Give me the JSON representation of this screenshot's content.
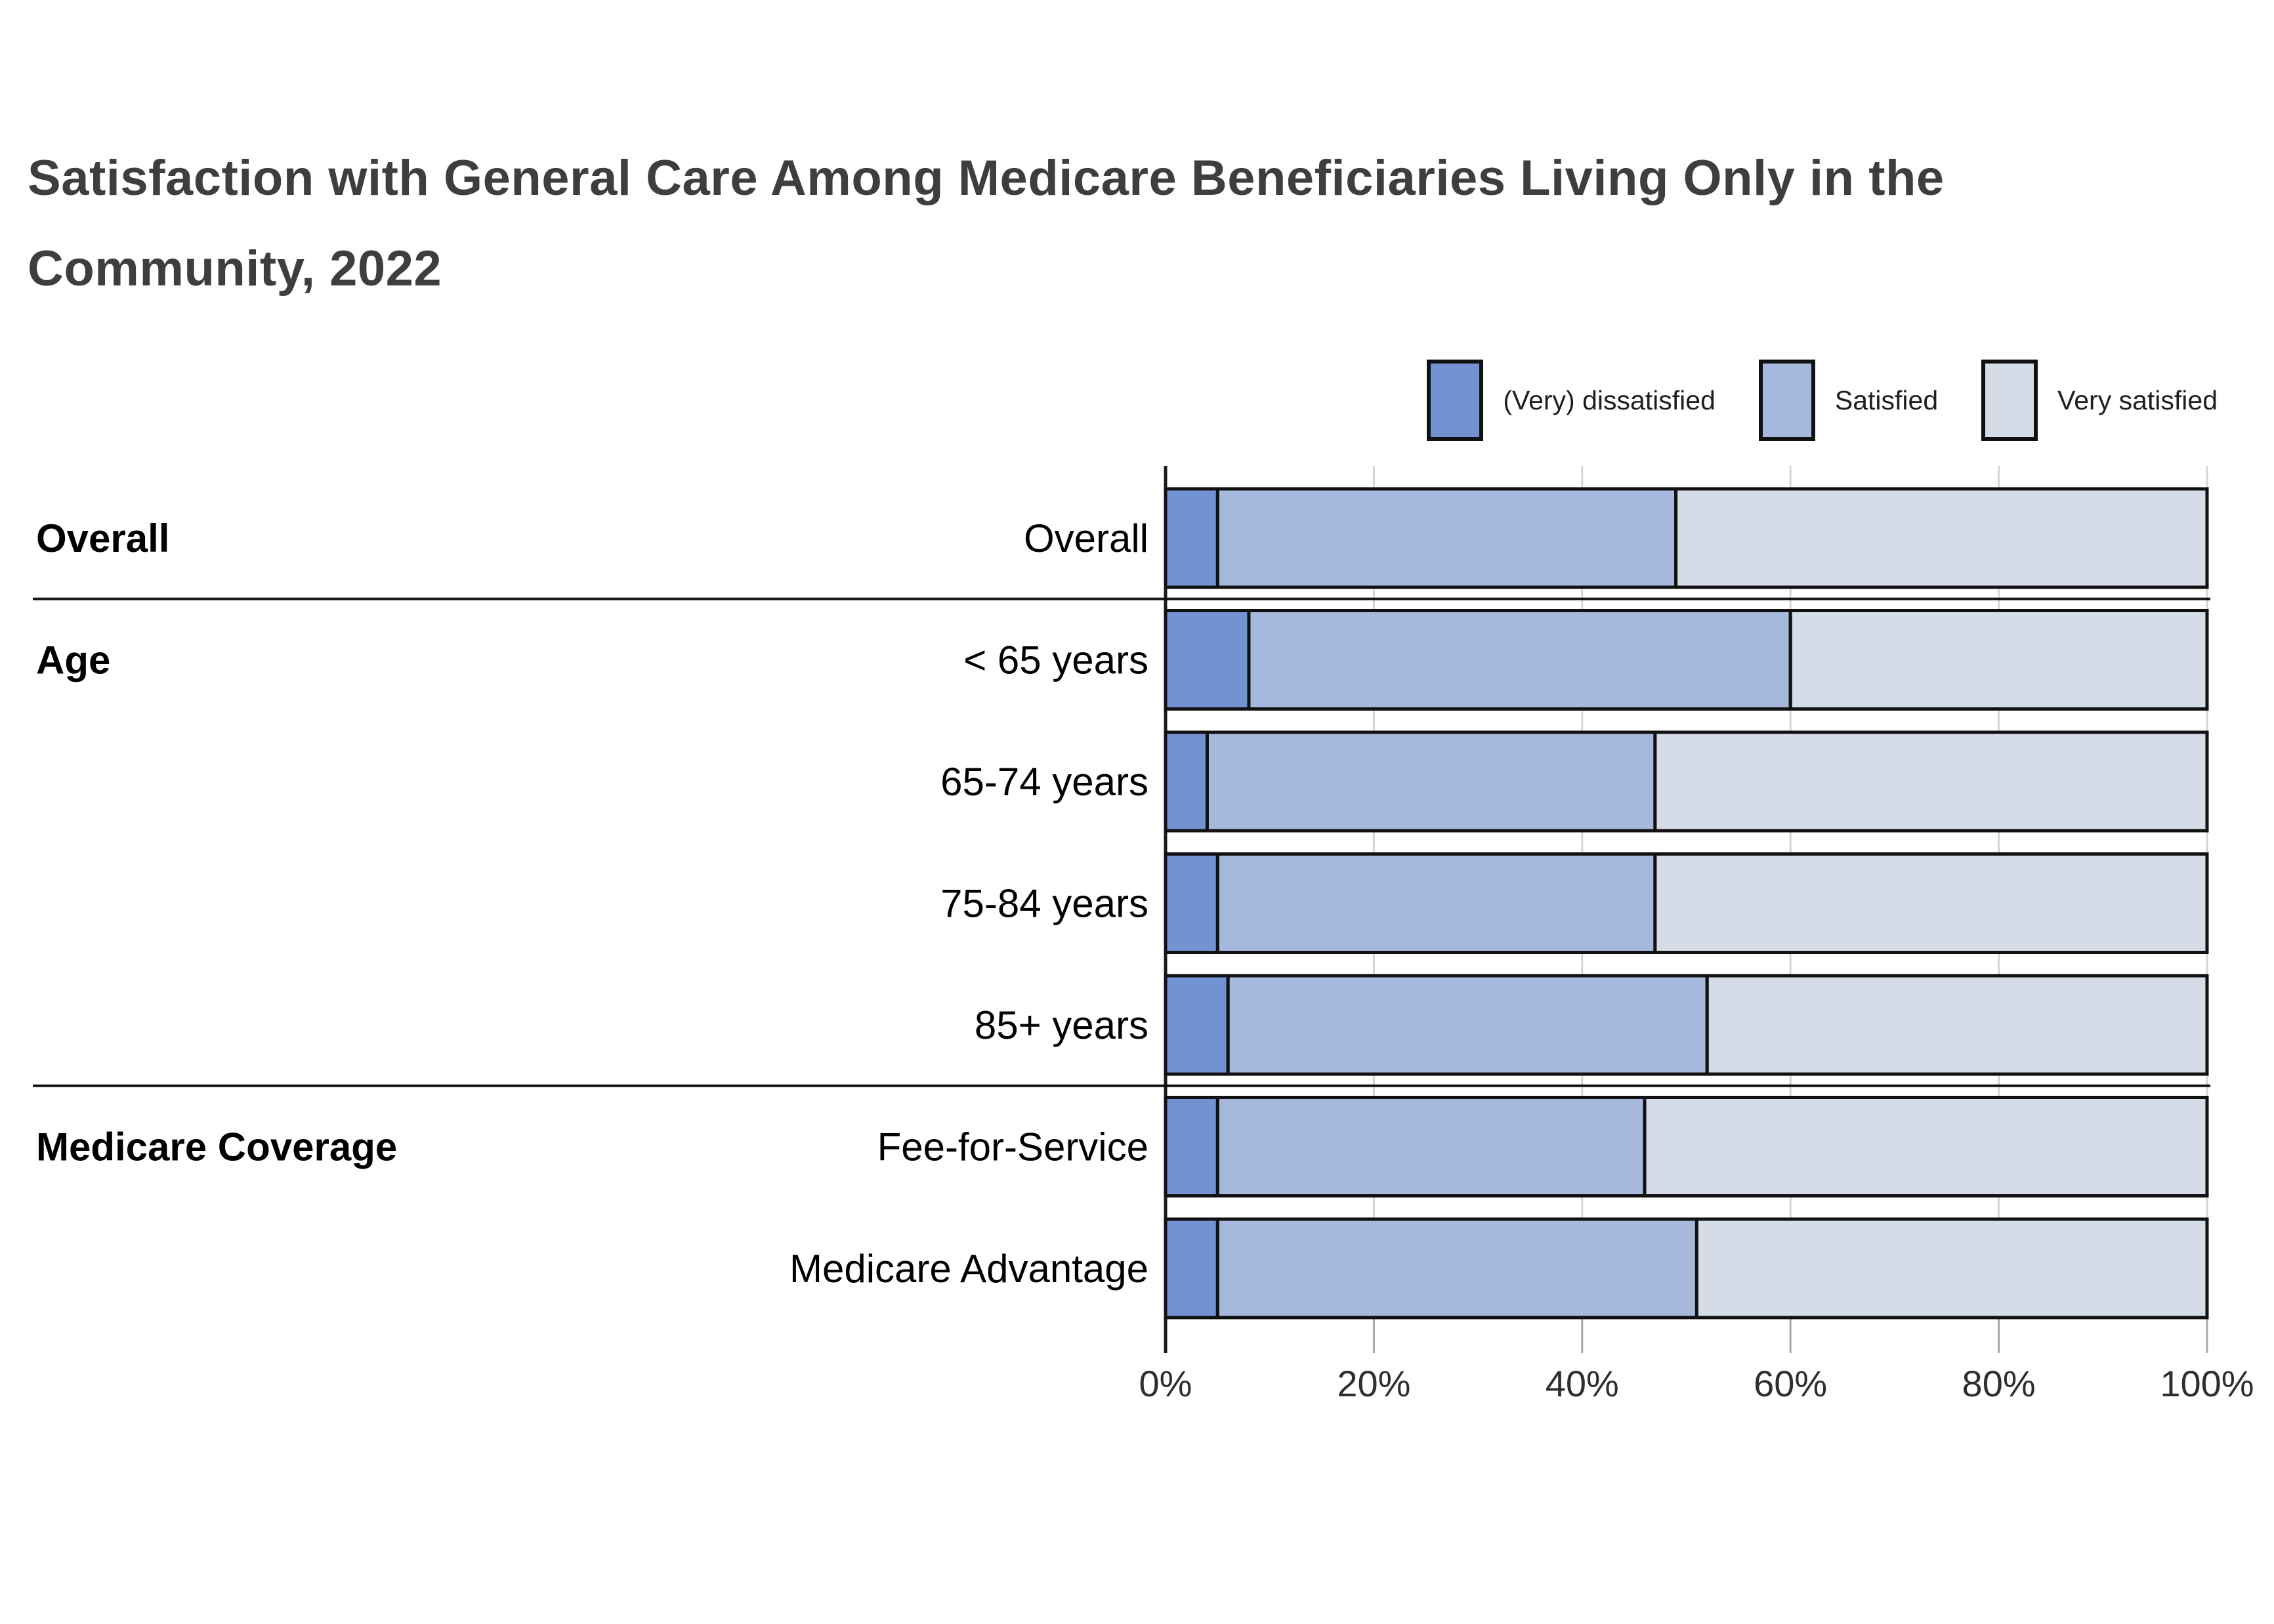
{
  "title": {
    "line1": "Satisfaction with General Care Among Medicare Beneficiaries Living Only in the",
    "line2": "Community, 2022",
    "full": "Satisfaction with General Care Among Medicare Beneficiaries Living Only in the Community, 2022"
  },
  "legend": {
    "position": "top-right",
    "items": [
      {
        "label": "(Very) dissatisfied",
        "color": "#7392d1"
      },
      {
        "label": "Satisfied",
        "color": "#a6b9dd"
      },
      {
        "label": "Very satisfied",
        "color": "#d5dce7"
      }
    ]
  },
  "x_axis": {
    "min": 0,
    "max": 100,
    "tick_values": [
      0,
      20,
      40,
      60,
      80,
      100
    ],
    "ticks": [
      "0%",
      "20%",
      "40%",
      "60%",
      "80%",
      "100%"
    ]
  },
  "colors": {
    "bar_stroke": "#111111",
    "axis": "#1a1a1a",
    "tick": "#a8a8a8",
    "gridline": "#d4d4d4",
    "separator": "#111111",
    "title_text": "#3e3e3e",
    "background": "#ffffff"
  },
  "chart_data": {
    "type": "bar",
    "orientation": "horizontal",
    "stacked": true,
    "title": "Satisfaction with General Care Among Medicare Beneficiaries Living Only in the Community, 2022",
    "categories": [
      "Overall",
      "< 65 years",
      "65-74 years",
      "75-84 years",
      "85+ years",
      "Fee-for-Service",
      "Medicare Advantage"
    ],
    "groups": [
      {
        "label": "Overall",
        "rows": [
          0
        ]
      },
      {
        "label": "Age",
        "rows": [
          1,
          2,
          3,
          4
        ]
      },
      {
        "label": "Medicare Coverage",
        "rows": [
          5,
          6
        ]
      }
    ],
    "series": [
      {
        "name": "(Very) dissatisfied",
        "color": "#7392d1",
        "values": [
          5,
          8,
          4,
          5,
          6,
          5,
          5
        ]
      },
      {
        "name": "Satisfied",
        "color": "#a6b9dd",
        "values": [
          44,
          52,
          43,
          42,
          46,
          41,
          46
        ]
      },
      {
        "name": "Very satisfied",
        "color": "#d5dce7",
        "values": [
          51,
          40,
          53,
          53,
          48,
          54,
          49
        ]
      }
    ],
    "xlabel": "",
    "ylabel": "",
    "xlim": [
      0,
      100
    ],
    "grid": true,
    "legend_position": "top-right",
    "units": "percent"
  }
}
